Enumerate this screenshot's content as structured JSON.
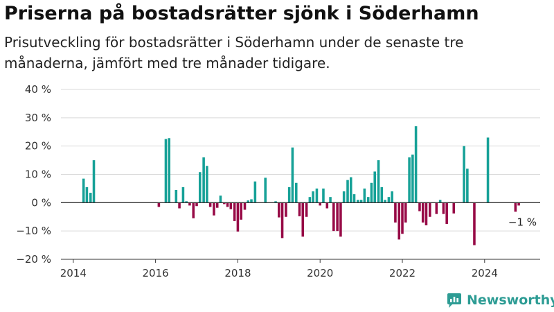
{
  "header": {
    "title": "Priserna på bostadsrätter sjönk i Söderhamn",
    "subtitle": "Prisutveckling för bostadsrätter i Söderhamn under de senaste tre månaderna, jämfört med tre månader tidigare."
  },
  "brand": {
    "name": "Newsworthy"
  },
  "colors": {
    "positive": "#16a197",
    "negative": "#970a46",
    "grid": "#d9d9d9",
    "axis": "#333333",
    "brand": "#2d9c94"
  },
  "chart_data": {
    "type": "bar",
    "xlim": [
      2013.7,
      2025.35
    ],
    "ylim": [
      -20,
      40
    ],
    "x_ticks": [
      2014,
      2016,
      2018,
      2020,
      2022,
      2024
    ],
    "y_ticks": [
      -20,
      -10,
      0,
      10,
      20,
      30,
      40
    ],
    "y_tick_labels": [
      "−20 %",
      "−10 %",
      "0 %",
      "10 %",
      "20 %",
      "30 %",
      "40 %"
    ],
    "grid": true,
    "annotation": {
      "text": "−1 %",
      "x": 2024.92,
      "y": -1
    },
    "points": [
      {
        "x": 2014.25,
        "y": 8.5
      },
      {
        "x": 2014.33,
        "y": 5.5
      },
      {
        "x": 2014.42,
        "y": 3.5
      },
      {
        "x": 2014.5,
        "y": 15
      },
      {
        "x": 2016.08,
        "y": -1.5
      },
      {
        "x": 2016.25,
        "y": 22.5
      },
      {
        "x": 2016.33,
        "y": 22.8
      },
      {
        "x": 2016.5,
        "y": 4.5
      },
      {
        "x": 2016.58,
        "y": -2
      },
      {
        "x": 2016.67,
        "y": 5.5
      },
      {
        "x": 2016.75,
        "y": 0.5
      },
      {
        "x": 2016.83,
        "y": -1
      },
      {
        "x": 2016.92,
        "y": -5.5
      },
      {
        "x": 2017.0,
        "y": -1.2
      },
      {
        "x": 2017.08,
        "y": 10.8
      },
      {
        "x": 2017.17,
        "y": 16
      },
      {
        "x": 2017.25,
        "y": 13
      },
      {
        "x": 2017.33,
        "y": -1.5
      },
      {
        "x": 2017.42,
        "y": -4.5
      },
      {
        "x": 2017.5,
        "y": -1.8
      },
      {
        "x": 2017.58,
        "y": 2.5
      },
      {
        "x": 2017.67,
        "y": -0.5
      },
      {
        "x": 2017.75,
        "y": -1.5
      },
      {
        "x": 2017.83,
        "y": -2.3
      },
      {
        "x": 2017.92,
        "y": -6.5
      },
      {
        "x": 2018.0,
        "y": -10.2
      },
      {
        "x": 2018.08,
        "y": -6
      },
      {
        "x": 2018.17,
        "y": -2.5
      },
      {
        "x": 2018.25,
        "y": 0.8
      },
      {
        "x": 2018.33,
        "y": 1.2
      },
      {
        "x": 2018.42,
        "y": 7.5
      },
      {
        "x": 2018.67,
        "y": 8.8
      },
      {
        "x": 2018.92,
        "y": 0.5
      },
      {
        "x": 2019.0,
        "y": -5.2
      },
      {
        "x": 2019.08,
        "y": -12.5
      },
      {
        "x": 2019.17,
        "y": -5
      },
      {
        "x": 2019.25,
        "y": 5.5
      },
      {
        "x": 2019.33,
        "y": 19.5
      },
      {
        "x": 2019.42,
        "y": 7
      },
      {
        "x": 2019.5,
        "y": -4.8
      },
      {
        "x": 2019.58,
        "y": -12
      },
      {
        "x": 2019.67,
        "y": -5
      },
      {
        "x": 2019.75,
        "y": 2
      },
      {
        "x": 2019.83,
        "y": 4
      },
      {
        "x": 2019.92,
        "y": 5
      },
      {
        "x": 2020.0,
        "y": -1
      },
      {
        "x": 2020.08,
        "y": 5
      },
      {
        "x": 2020.17,
        "y": -2
      },
      {
        "x": 2020.25,
        "y": 2
      },
      {
        "x": 2020.33,
        "y": -10
      },
      {
        "x": 2020.42,
        "y": -10
      },
      {
        "x": 2020.5,
        "y": -12
      },
      {
        "x": 2020.58,
        "y": 4
      },
      {
        "x": 2020.67,
        "y": 8
      },
      {
        "x": 2020.75,
        "y": 9
      },
      {
        "x": 2020.83,
        "y": 3
      },
      {
        "x": 2020.92,
        "y": 1
      },
      {
        "x": 2021.0,
        "y": 1
      },
      {
        "x": 2021.08,
        "y": 5
      },
      {
        "x": 2021.17,
        "y": 2
      },
      {
        "x": 2021.25,
        "y": 7
      },
      {
        "x": 2021.33,
        "y": 11
      },
      {
        "x": 2021.42,
        "y": 15
      },
      {
        "x": 2021.5,
        "y": 5.5
      },
      {
        "x": 2021.58,
        "y": 1
      },
      {
        "x": 2021.67,
        "y": 2
      },
      {
        "x": 2021.75,
        "y": 4
      },
      {
        "x": 2021.83,
        "y": -7
      },
      {
        "x": 2021.92,
        "y": -13
      },
      {
        "x": 2022.0,
        "y": -11
      },
      {
        "x": 2022.08,
        "y": -7
      },
      {
        "x": 2022.17,
        "y": 16
      },
      {
        "x": 2022.25,
        "y": 17
      },
      {
        "x": 2022.33,
        "y": 27
      },
      {
        "x": 2022.42,
        "y": -3
      },
      {
        "x": 2022.5,
        "y": -7
      },
      {
        "x": 2022.58,
        "y": -8
      },
      {
        "x": 2022.67,
        "y": -5
      },
      {
        "x": 2022.83,
        "y": -4
      },
      {
        "x": 2022.92,
        "y": 1
      },
      {
        "x": 2023.0,
        "y": -4
      },
      {
        "x": 2023.08,
        "y": -7.5
      },
      {
        "x": 2023.25,
        "y": -3.8
      },
      {
        "x": 2023.5,
        "y": 20
      },
      {
        "x": 2023.58,
        "y": 12
      },
      {
        "x": 2023.75,
        "y": -15
      },
      {
        "x": 2024.08,
        "y": 23
      },
      {
        "x": 2024.75,
        "y": -3.2
      },
      {
        "x": 2024.83,
        "y": -1
      }
    ]
  }
}
